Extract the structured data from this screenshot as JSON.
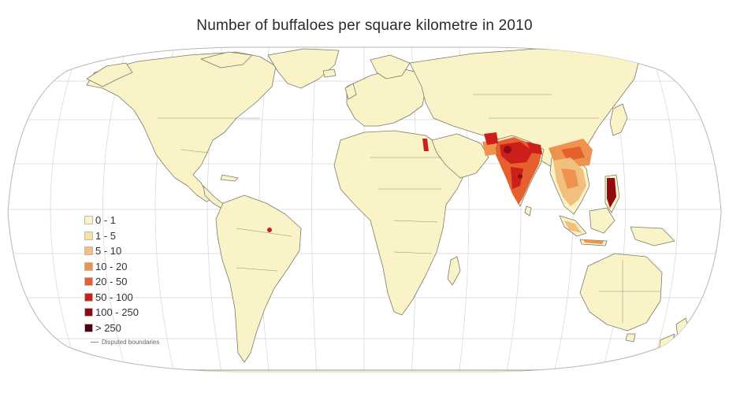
{
  "map": {
    "title": "Number of buffaloes per square kilometre in 2010",
    "legend": [
      {
        "label": "0 - 1",
        "color": "#fbf3c8"
      },
      {
        "label": "1 - 5",
        "color": "#f6e3a4"
      },
      {
        "label": "5 - 10",
        "color": "#f2c07e"
      },
      {
        "label": "10 - 20",
        "color": "#ee9250"
      },
      {
        "label": "20 - 50",
        "color": "#e6602e"
      },
      {
        "label": "50 - 100",
        "color": "#cc1f1a"
      },
      {
        "label": "100 - 250",
        "color": "#8e0c10"
      },
      {
        "label": "> 250",
        "color": "#4a0208"
      }
    ],
    "disputed_label": "Disputed boundaries",
    "colors": {
      "land": "#fbf3c8",
      "border": "#7a7a6a",
      "graticule": "#cfcfcf",
      "ocean": "#ffffff"
    }
  }
}
